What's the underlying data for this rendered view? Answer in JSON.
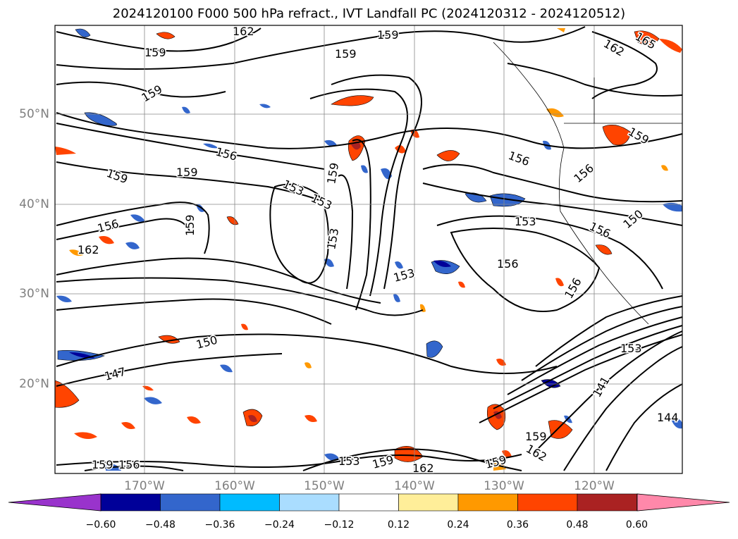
{
  "title": "2024120100 F000 500 hPa refract., IVT Landfall PC (2024120312 - 2024120512)",
  "lat_labels": [
    "50°N",
    "40°N",
    "30°N",
    "20°N"
  ],
  "lon_labels": [
    "170°W",
    "160°W",
    "150°W",
    "140°W",
    "130°W",
    "120°W"
  ],
  "colorbar": {
    "ticks": [
      "−0.60",
      "−0.48",
      "−0.36",
      "−0.24",
      "−0.12",
      "0.12",
      "0.24",
      "0.36",
      "0.48",
      "0.60"
    ],
    "colors": [
      "#9933cc",
      "#000099",
      "#3366cc",
      "#00bbff",
      "#aaddff",
      "#ffffff",
      "#ffee99",
      "#ff9900",
      "#ff4400",
      "#aa2222",
      "#ff88aa"
    ]
  },
  "contour_labels": [
    "162",
    "159",
    "159",
    "159",
    "162",
    "165",
    "159",
    "159",
    "159",
    "156",
    "156",
    "156",
    "159",
    "156",
    "153",
    "153",
    "159",
    "153",
    "153",
    "153",
    "156",
    "156",
    "150",
    "153",
    "162",
    "156",
    "159",
    "150",
    "147",
    "141",
    "144",
    "162",
    "159",
    "156",
    "153",
    "159",
    "162",
    "159",
    "159"
  ]
}
